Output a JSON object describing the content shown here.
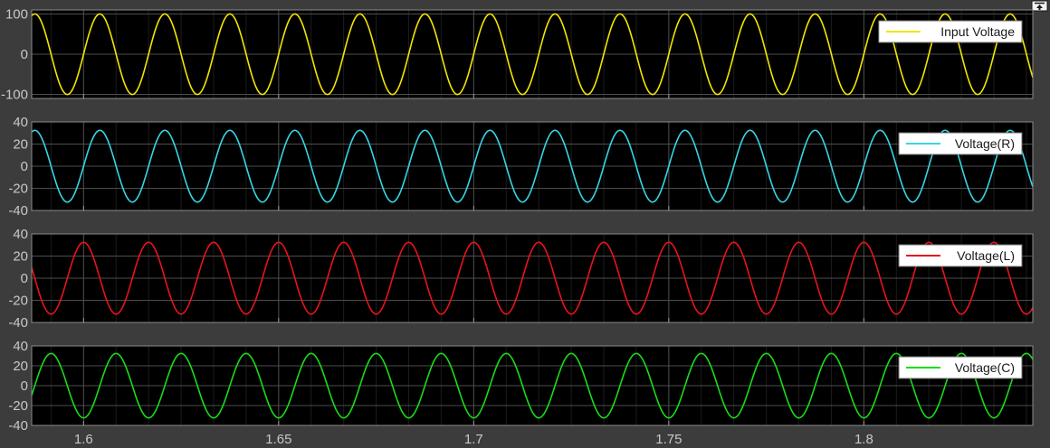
{
  "undock_icon": "undock-arrow-icon",
  "chart_data": [
    {
      "type": "line",
      "ylim": [
        -110,
        110
      ],
      "yticks": [
        -100,
        0,
        100
      ],
      "ytick_labels": [
        "-100",
        "0",
        "100"
      ],
      "grid": true,
      "legend_position": "top-right",
      "series": [
        {
          "name": "Input Voltage",
          "color": "#f2e600",
          "amplitude": 100,
          "frequency_hz": 60,
          "phase_deg": 0
        }
      ]
    },
    {
      "type": "line",
      "ylim": [
        -40,
        40
      ],
      "yticks": [
        -40,
        -20,
        0,
        20,
        40
      ],
      "ytick_labels": [
        "-40",
        "-20",
        "0",
        "20",
        "40"
      ],
      "grid": true,
      "legend_position": "top-right",
      "series": [
        {
          "name": "Voltage(R)",
          "color": "#36d6e6",
          "amplitude": 32.4,
          "frequency_hz": 60,
          "phase_deg": 0
        }
      ]
    },
    {
      "type": "line",
      "ylim": [
        -40,
        40
      ],
      "yticks": [
        -40,
        -20,
        0,
        20,
        40
      ],
      "ytick_labels": [
        "-40",
        "-20",
        "0",
        "20",
        "40"
      ],
      "grid": true,
      "legend_position": "top-right",
      "series": [
        {
          "name": "Voltage(L)",
          "color": "#e8141a",
          "amplitude": 32.4,
          "frequency_hz": 60,
          "phase_deg": 90
        }
      ]
    },
    {
      "type": "line",
      "ylim": [
        -40,
        40
      ],
      "yticks": [
        -40,
        -20,
        0,
        20,
        40
      ],
      "ytick_labels": [
        "-40",
        "-20",
        "0",
        "20",
        "40"
      ],
      "grid": true,
      "legend_position": "top-right",
      "series": [
        {
          "name": "Voltage(C)",
          "color": "#19dc19",
          "amplitude": 32.4,
          "frequency_hz": 60,
          "phase_deg": -90
        }
      ]
    }
  ],
  "x_axis": {
    "xlim": [
      1.5867,
      1.8433
    ],
    "xticks": [
      1.6,
      1.65,
      1.7,
      1.75,
      1.8
    ],
    "xtick_labels": [
      "1.6",
      "1.65",
      "1.7",
      "1.75",
      "1.8"
    ],
    "minor_grid_step": 0.0083333
  }
}
